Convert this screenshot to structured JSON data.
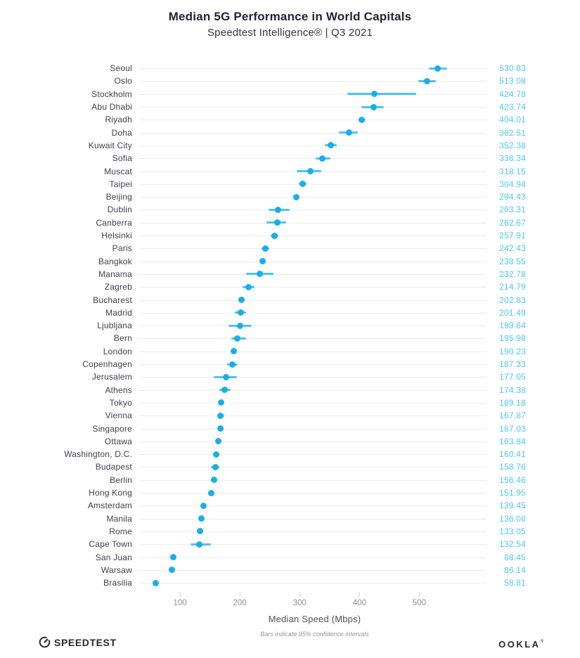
{
  "header": {
    "title": "Median 5G Performance in World Capitals",
    "subtitle": "Speedtest Intelligence® | Q3 2021"
  },
  "chart_data": {
    "type": "scatter",
    "subtype": "horizontal_dot_plot_with_95pct_confidence_bars",
    "title": "Median 5G Performance in World Capitals",
    "subtitle": "Speedtest Intelligence® | Q3 2021",
    "xlabel": "Median Speed (Mbps)",
    "footnote": "Bars indicate 95% confidence intervals",
    "x_ticks": [
      100,
      200,
      300,
      400,
      500
    ],
    "xlim": [
      40,
      610
    ],
    "legend": "none",
    "grid": "per-row light guide lines",
    "points": [
      {
        "city": "Seoul",
        "value": 530.83,
        "ci": [
          516,
          546
        ]
      },
      {
        "city": "Oslo",
        "value": 513.08,
        "ci": [
          498,
          528
        ]
      },
      {
        "city": "Stockholm",
        "value": 424.78,
        "ci": [
          380,
          495
        ]
      },
      {
        "city": "Abu Dhabi",
        "value": 423.74,
        "ci": [
          403,
          441
        ]
      },
      {
        "city": "Riyadh",
        "value": 404.01,
        "ci": [
          398,
          410
        ]
      },
      {
        "city": "Doha",
        "value": 382.51,
        "ci": [
          366,
          397
        ]
      },
      {
        "city": "Kuwait City",
        "value": 352.38,
        "ci": [
          342,
          362
        ]
      },
      {
        "city": "Sofia",
        "value": 338.34,
        "ci": [
          327,
          351
        ]
      },
      {
        "city": "Muscat",
        "value": 318.15,
        "ci": [
          295,
          336
        ]
      },
      {
        "city": "Taipei",
        "value": 304.94,
        "ci": [
          299,
          311
        ]
      },
      {
        "city": "Beijing",
        "value": 294.43,
        "ci": [
          290,
          299
        ]
      },
      {
        "city": "Dublin",
        "value": 263.31,
        "ci": [
          248,
          283
        ]
      },
      {
        "city": "Canberra",
        "value": 262.67,
        "ci": [
          244,
          277
        ]
      },
      {
        "city": "Helsinki",
        "value": 257.91,
        "ci": [
          251,
          265
        ]
      },
      {
        "city": "Paris",
        "value": 242.43,
        "ci": [
          236,
          249
        ]
      },
      {
        "city": "Bangkok",
        "value": 238.55,
        "ci": [
          234,
          243
        ]
      },
      {
        "city": "Manama",
        "value": 232.78,
        "ci": [
          210,
          256
        ]
      },
      {
        "city": "Zagreb",
        "value": 214.79,
        "ci": [
          205,
          225
        ]
      },
      {
        "city": "Bucharest",
        "value": 202.83,
        "ci": [
          199,
          207
        ]
      },
      {
        "city": "Madrid",
        "value": 201.49,
        "ci": [
          192,
          211
        ]
      },
      {
        "city": "Ljubljana",
        "value": 199.84,
        "ci": [
          181,
          220
        ]
      },
      {
        "city": "Bern",
        "value": 195.98,
        "ci": [
          186,
          210
        ]
      },
      {
        "city": "London",
        "value": 190.23,
        "ci": [
          186,
          194
        ]
      },
      {
        "city": "Copenhagen",
        "value": 187.33,
        "ci": [
          179,
          196
        ]
      },
      {
        "city": "Jerusalem",
        "value": 177.05,
        "ci": [
          156,
          195
        ]
      },
      {
        "city": "Athens",
        "value": 174.38,
        "ci": [
          166,
          184
        ]
      },
      {
        "city": "Tokyo",
        "value": 169.18,
        "ci": [
          166,
          172
        ]
      },
      {
        "city": "Vienna",
        "value": 167.87,
        "ci": [
          162,
          174
        ]
      },
      {
        "city": "Singapore",
        "value": 167.03,
        "ci": [
          165,
          169
        ]
      },
      {
        "city": "Ottawa",
        "value": 163.84,
        "ci": [
          161,
          167
        ]
      },
      {
        "city": "Washington, D.C.",
        "value": 160.41,
        "ci": [
          157,
          164
        ]
      },
      {
        "city": "Budapest",
        "value": 158.76,
        "ci": [
          152,
          166
        ]
      },
      {
        "city": "Berlin",
        "value": 156.46,
        "ci": [
          154,
          158
        ]
      },
      {
        "city": "Hong Kong",
        "value": 151.95,
        "ci": [
          150,
          154
        ]
      },
      {
        "city": "Amsterdam",
        "value": 139.45,
        "ci": [
          137,
          142
        ]
      },
      {
        "city": "Manila",
        "value": 136.06,
        "ci": [
          134,
          138
        ]
      },
      {
        "city": "Rome",
        "value": 133.05,
        "ci": [
          131,
          135
        ]
      },
      {
        "city": "Cape Town",
        "value": 132.54,
        "ci": [
          117,
          152
        ]
      },
      {
        "city": "San Juan",
        "value": 88.45,
        "ci": [
          87,
          90
        ]
      },
      {
        "city": "Warsaw",
        "value": 86.14,
        "ci": [
          84,
          88
        ]
      },
      {
        "city": "Brasilia",
        "value": 58.81,
        "ci": [
          57,
          60
        ]
      }
    ]
  },
  "footer": {
    "speedtest": {
      "icon": "speedometer-gauge-icon",
      "label": "SPEEDTEST"
    },
    "ookla": {
      "label": "OOKLA",
      "registered_mark": "®"
    }
  },
  "colors": {
    "dot": "#1badea",
    "ci_bar": "#4cc3f3",
    "value_text": "#4fc7f6",
    "city_label_text": "#3e3e4d",
    "guide_line": "#ededf0",
    "title_text": "#232334",
    "axis_tick_text": "#8f8f99",
    "background": "#ffffff"
  }
}
